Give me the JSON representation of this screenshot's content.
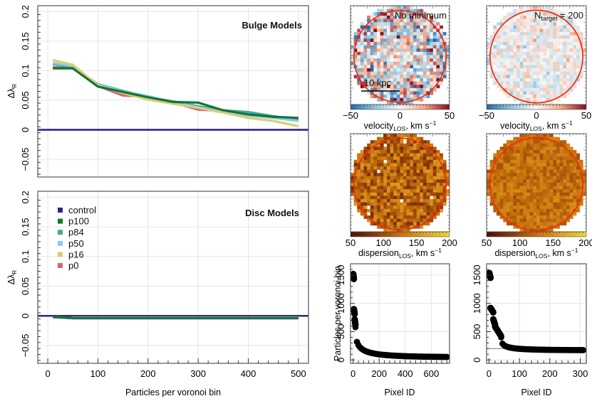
{
  "chart_data": [
    {
      "id": "bulge",
      "type": "line",
      "title": "Bulge Models",
      "xlabel": "",
      "ylabel": "ΔλR",
      "ylabel_main": "Δλ",
      "ylabel_sub": "R",
      "xlim": [
        -20,
        520
      ],
      "ylim": [
        -0.08,
        0.21
      ],
      "grid": true,
      "x_ticks": [
        0,
        100,
        200,
        300,
        400,
        500
      ],
      "y_ticks": [
        -0.05,
        0,
        0.05,
        0.1,
        0.15,
        0.2
      ],
      "y_tick_labels": [
        "−0.05",
        "0",
        "0.05",
        "0.1",
        "0.15",
        "0.2"
      ],
      "x": [
        10,
        50,
        100,
        150,
        200,
        250,
        300,
        350,
        400,
        450,
        500
      ],
      "series": [
        {
          "name": "control",
          "color": "#332288",
          "values": [
            0,
            0,
            0,
            0,
            0,
            0,
            0,
            0,
            0,
            0,
            0
          ],
          "full_width": true
        },
        {
          "name": "p84",
          "color": "#44AA99",
          "values": [
            0.111,
            0.106,
            0.077,
            0.066,
            0.056,
            0.048,
            0.04,
            0.033,
            0.03,
            0.023,
            0.017
          ]
        },
        {
          "name": "p0",
          "color": "#CC6677",
          "values": [
            0.106,
            0.104,
            0.074,
            0.058,
            0.056,
            0.046,
            0.034,
            0.032,
            0.026,
            0.022,
            0.018
          ]
        },
        {
          "name": "p50",
          "color": "#88CCEE",
          "values": [
            0.113,
            0.108,
            0.076,
            0.065,
            0.057,
            0.047,
            0.038,
            0.03,
            0.024,
            0.02,
            0.015
          ]
        },
        {
          "name": "p16",
          "color": "#DDCC77",
          "values": [
            0.118,
            0.11,
            0.075,
            0.062,
            0.051,
            0.044,
            0.037,
            0.029,
            0.02,
            0.015,
            0.006
          ]
        },
        {
          "name": "p100",
          "color": "#117733",
          "values": [
            0.104,
            0.104,
            0.073,
            0.064,
            0.055,
            0.047,
            0.046,
            0.033,
            0.026,
            0.022,
            0.02
          ]
        }
      ]
    },
    {
      "id": "disc",
      "type": "line",
      "title": "Disc Models",
      "xlabel": "Particles per voronoi bin",
      "ylabel": "ΔλR",
      "ylabel_main": "Δλ",
      "ylabel_sub": "R",
      "xlim": [
        -20,
        520
      ],
      "ylim": [
        -0.08,
        0.21
      ],
      "grid": true,
      "x_ticks": [
        0,
        100,
        200,
        300,
        400,
        500
      ],
      "y_ticks": [
        -0.05,
        0,
        0.05,
        0.1,
        0.15,
        0.2
      ],
      "y_tick_labels": [
        "−0.05",
        "0",
        "0.05",
        "0.1",
        "0.15",
        "0.2"
      ],
      "x": [
        10,
        50,
        100,
        150,
        200,
        250,
        300,
        350,
        400,
        450,
        500
      ],
      "legend_position": "top-left",
      "legend": [
        "control",
        "p100",
        "p84",
        "p50",
        "p16",
        "p0"
      ],
      "series": [
        {
          "name": "control",
          "color": "#332288",
          "values": [
            0,
            0,
            0,
            0,
            0,
            0,
            0,
            0,
            0,
            0,
            0
          ],
          "full_width": true
        },
        {
          "name": "p0",
          "color": "#CC6677",
          "values": [
            -0.002,
            -0.004,
            -0.004,
            -0.004,
            -0.004,
            -0.004,
            -0.004,
            -0.004,
            -0.004,
            -0.004,
            -0.004
          ]
        },
        {
          "name": "p16",
          "color": "#DDCC77",
          "values": [
            -0.002,
            -0.004,
            -0.004,
            -0.004,
            -0.004,
            -0.004,
            -0.004,
            -0.004,
            -0.004,
            -0.004,
            -0.004
          ]
        },
        {
          "name": "p50",
          "color": "#88CCEE",
          "values": [
            -0.002,
            -0.004,
            -0.004,
            -0.004,
            -0.004,
            -0.004,
            -0.004,
            -0.004,
            -0.004,
            -0.004,
            -0.004
          ]
        },
        {
          "name": "p84",
          "color": "#44AA99",
          "values": [
            -0.002,
            -0.004,
            -0.004,
            -0.004,
            -0.004,
            -0.004,
            -0.004,
            -0.004,
            -0.004,
            -0.004,
            -0.004
          ]
        },
        {
          "name": "p100",
          "color": "#117733",
          "values": [
            -0.002,
            -0.004,
            -0.004,
            -0.004,
            -0.004,
            -0.004,
            -0.004,
            -0.004,
            -0.004,
            -0.004,
            -0.004
          ]
        }
      ]
    },
    {
      "id": "vel-nomin",
      "type": "heatmap",
      "title": "No minimum",
      "annotation": "10 kpc",
      "colorbar_label": "velocityLOS, km s−1",
      "colorbar_label_main": "velocity",
      "colorbar_label_sub": "LOS",
      "colorbar_label_unit": ", km s",
      "colorbar_label_sup": "−1",
      "colorbar_range": [
        -50,
        50
      ],
      "colorbar_ticks": [
        "−50",
        "0",
        "50"
      ],
      "colormap": [
        "#2166AC",
        "#92C5DE",
        "#F7F7F7",
        "#F4A582",
        "#8B0A1F"
      ],
      "pattern": "noisy"
    },
    {
      "id": "vel-ntarget",
      "type": "heatmap",
      "title_main": "N",
      "title_sub": "target",
      "title_rest": " = 200",
      "colorbar_label_main": "velocity",
      "colorbar_label_sub": "LOS",
      "colorbar_label_unit": ", km s",
      "colorbar_label_sup": "−1",
      "colorbar_range": [
        -50,
        50
      ],
      "colorbar_ticks": [
        "−50",
        "0",
        "50"
      ],
      "colormap": [
        "#2166AC",
        "#92C5DE",
        "#F7F7F7",
        "#F4A582",
        "#8B0A1F"
      ],
      "pattern": "smooth"
    },
    {
      "id": "disp-nomin",
      "type": "heatmap",
      "colorbar_label_main": "dispersion",
      "colorbar_label_sub": "LOS",
      "colorbar_label_unit": ", km s",
      "colorbar_label_sup": "−1",
      "colorbar_range": [
        50,
        200
      ],
      "colorbar_ticks": [
        "50",
        "100",
        "150",
        "200"
      ],
      "colormap": [
        "#4A1008",
        "#8B3A0A",
        "#C7700C",
        "#E0A020",
        "#E8D830"
      ],
      "pattern": "noisy"
    },
    {
      "id": "disp-ntarget",
      "type": "heatmap",
      "colorbar_label_main": "dispersion",
      "colorbar_label_sub": "LOS",
      "colorbar_label_unit": ", km s",
      "colorbar_label_sup": "−1",
      "colorbar_range": [
        50,
        200
      ],
      "colorbar_ticks": [
        "50",
        "100",
        "150",
        "200"
      ],
      "colormap": [
        "#4A1008",
        "#8B3A0A",
        "#C7700C",
        "#E0A020",
        "#E8D830"
      ],
      "pattern": "smooth"
    },
    {
      "id": "scatter-nomin",
      "type": "scatter",
      "xlabel": "Pixel ID",
      "ylabel": "Particles per voronoi bin",
      "xlim": [
        -20,
        740
      ],
      "ylim": [
        -60,
        1700
      ],
      "x_ticks": [
        0,
        200,
        400,
        600
      ],
      "y_ticks": [
        0,
        500,
        1000,
        1500
      ],
      "points_description": "sorted particle counts per bin, decreasing",
      "segments": [
        {
          "x": [
            1,
            6
          ],
          "y": [
            1520,
            1430
          ]
        },
        {
          "x": [
            6,
            12
          ],
          "y": [
            900,
            810
          ]
        },
        {
          "x": [
            12,
            18
          ],
          "y": [
            720,
            620
          ]
        },
        {
          "x": [
            18,
            720
          ],
          "curve": "decay",
          "y_start": 580,
          "y_end": 45
        }
      ]
    },
    {
      "id": "scatter-ntarget",
      "type": "scatter",
      "xlabel": "Pixel ID",
      "ylabel": "",
      "xlim": [
        -8,
        320
      ],
      "ylim": [
        -60,
        1700
      ],
      "x_ticks": [
        0,
        100,
        200,
        300
      ],
      "y_ticks": [
        0,
        500,
        1000,
        1500
      ],
      "hline": 200,
      "segments": [
        {
          "x": [
            1,
            5
          ],
          "y": [
            1540,
            1450
          ]
        },
        {
          "x": [
            5,
            14
          ],
          "y": [
            920,
            840
          ]
        },
        {
          "x": [
            14,
            20
          ],
          "y": [
            720,
            620
          ]
        },
        {
          "x": [
            20,
            40
          ],
          "y": [
            590,
            420
          ]
        },
        {
          "x": [
            40,
            310
          ],
          "curve": "decay",
          "y_start": 400,
          "y_end": 170
        }
      ]
    }
  ]
}
